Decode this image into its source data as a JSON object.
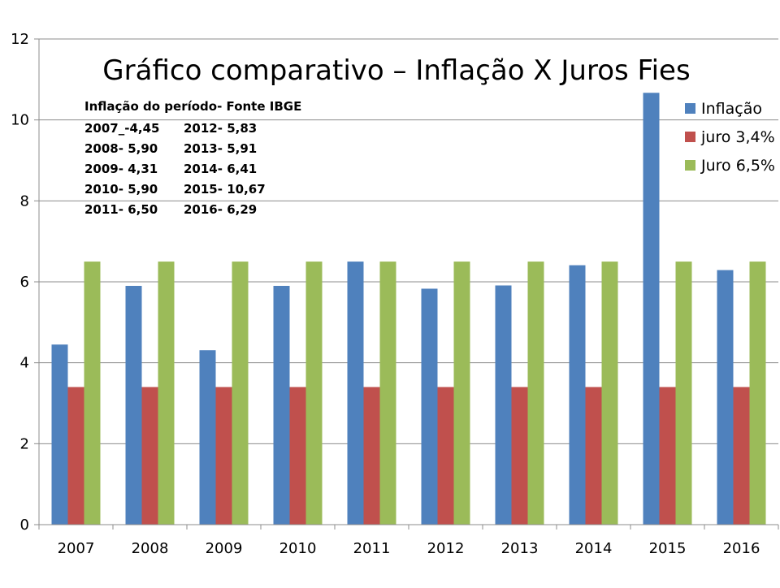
{
  "chart_data": {
    "type": "bar",
    "title": "Gráfico comparativo – Inflação X Juros Fies",
    "categories": [
      "2007",
      "2008",
      "2009",
      "2010",
      "2011",
      "2012",
      "2013",
      "2014",
      "2015",
      "2016"
    ],
    "series": [
      {
        "name": "Inflação",
        "color": "#4F81BD",
        "values": [
          4.45,
          5.9,
          4.31,
          5.9,
          6.5,
          5.83,
          5.91,
          6.41,
          10.67,
          6.29
        ]
      },
      {
        "name": "juro 3,4%",
        "color": "#C0504D",
        "values": [
          3.4,
          3.4,
          3.4,
          3.4,
          3.4,
          3.4,
          3.4,
          3.4,
          3.4,
          3.4
        ]
      },
      {
        "name": "Juro 6,5%",
        "color": "#9BBB59",
        "values": [
          6.5,
          6.5,
          6.5,
          6.5,
          6.5,
          6.5,
          6.5,
          6.5,
          6.5,
          6.5
        ]
      }
    ],
    "ylim": [
      0,
      12
    ],
    "yticks": [
      "0",
      "2",
      "4",
      "6",
      "8",
      "10",
      "12"
    ],
    "grid": true,
    "legend_position": "right",
    "annotation": {
      "heading": "Inflação do período- Fonte IBGE",
      "lines": [
        [
          "2007_-4,45",
          "2012-  5,83"
        ],
        [
          "2008-  5,90",
          "2013-  5,91"
        ],
        [
          "2009-  4,31",
          "2014-  6,41"
        ],
        [
          "2010-  5,90",
          "2015- 10,67"
        ],
        [
          "2011-  6,50",
          "2016-   6,29"
        ]
      ]
    }
  }
}
